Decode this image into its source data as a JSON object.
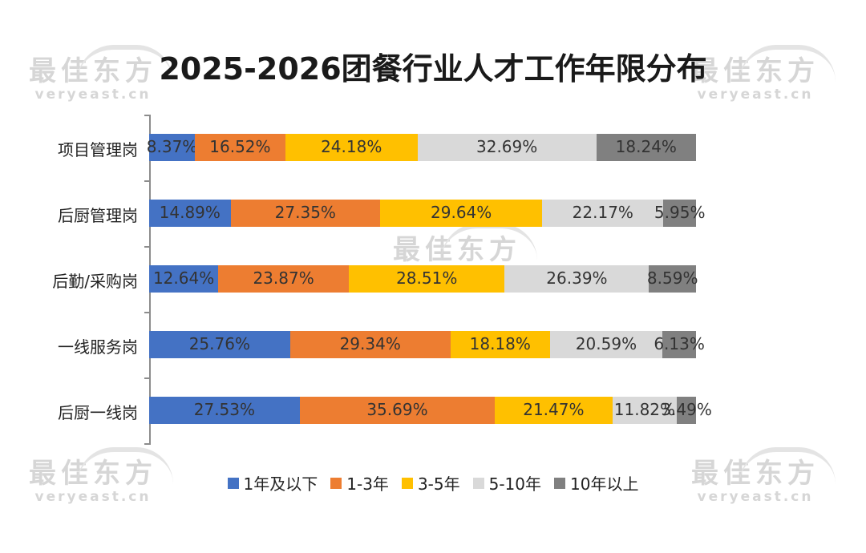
{
  "watermark": {
    "text_cn": "最佳东方",
    "text_en": "veryeast.cn"
  },
  "chart_data": {
    "type": "bar",
    "orientation": "horizontal",
    "stacked": true,
    "normalized": true,
    "title": "2025-2026团餐行业人才工作年限分布",
    "categories": [
      "项目管理岗",
      "后厨管理岗",
      "后勤/采购岗",
      "一线服务岗",
      "后厨一线岗"
    ],
    "series": [
      {
        "name": "1年及以下",
        "color": "#4472c4",
        "values": [
          8.37,
          14.89,
          12.64,
          25.76,
          27.53
        ]
      },
      {
        "name": "1-3年",
        "color": "#ed7d31",
        "values": [
          16.52,
          27.35,
          23.87,
          29.34,
          35.69
        ]
      },
      {
        "name": "3-5年",
        "color": "#ffc000",
        "values": [
          24.18,
          29.64,
          28.51,
          18.18,
          21.47
        ]
      },
      {
        "name": "5-10年",
        "color": "#d9d9d9",
        "values": [
          32.69,
          22.17,
          26.39,
          20.59,
          11.82
        ]
      },
      {
        "name": "10年以上",
        "color": "#808080",
        "values": [
          18.24,
          5.95,
          8.59,
          6.13,
          3.49
        ]
      }
    ],
    "data_labels": [
      [
        "8.37%",
        "16.52%",
        "24.18%",
        "32.69%",
        "18.24%"
      ],
      [
        "14.89%",
        "27.35%",
        "29.64%",
        "22.17%",
        "5.95%"
      ],
      [
        "12.64%",
        "23.87%",
        "28.51%",
        "26.39%",
        "8.59%"
      ],
      [
        "25.76%",
        "29.34%",
        "18.18%",
        "20.59%",
        "6.13%"
      ],
      [
        "27.53%",
        "35.69%",
        "21.47%",
        "11.82%",
        "3.49%"
      ]
    ],
    "xlim": [
      0,
      100
    ],
    "grid": false,
    "legend_position": "bottom"
  }
}
